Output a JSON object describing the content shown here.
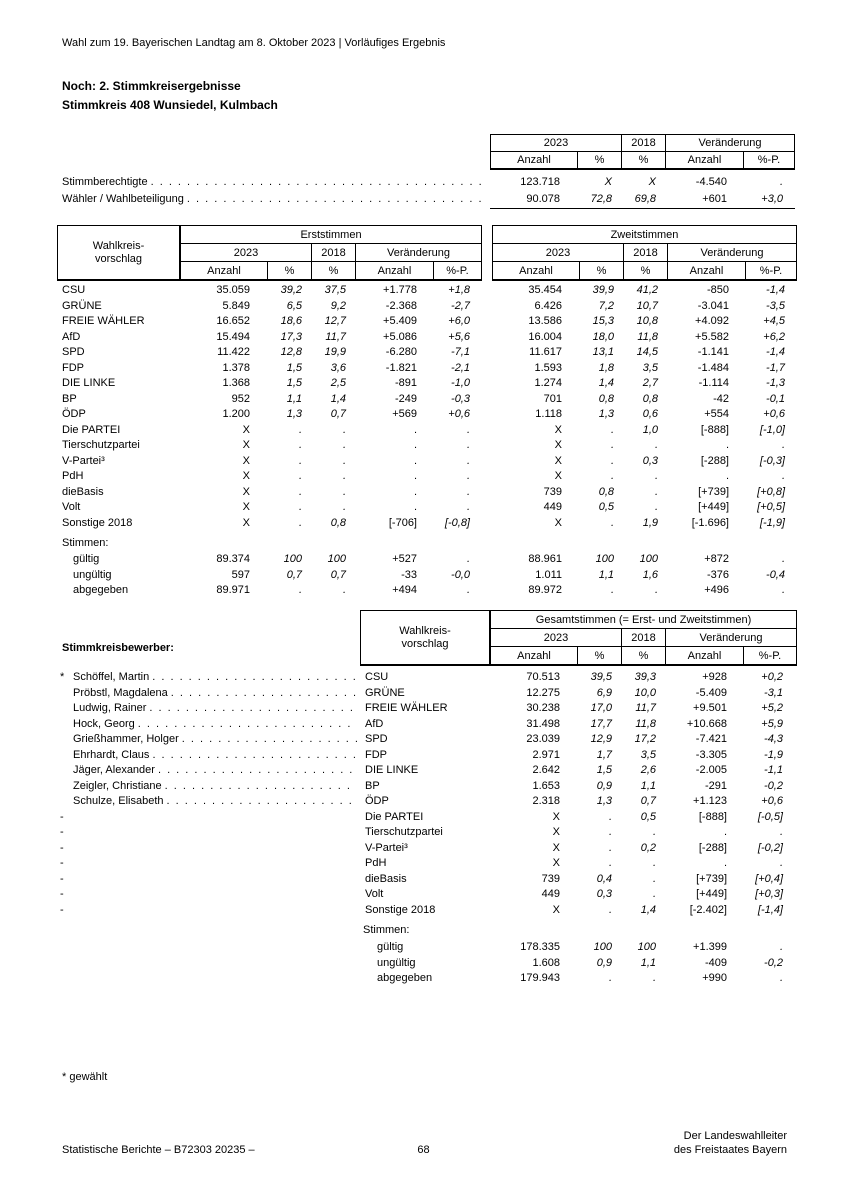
{
  "page": {
    "header": "Wahl zum 19. Bayerischen Landtag am 8. Oktober 2023 | Vorläufiges Ergebnis",
    "title_line1": "Noch: 2. Stimmkreisergebnisse",
    "title_line2": "Stimmkreis 408 Wunsiedel, Kulmbach",
    "footnote": "* gewählt",
    "footer_left": "Statistische Berichte – B72303 20235 –",
    "footer_page": "68",
    "footer_right1": "Der Landeswahlleiter",
    "footer_right2": "des Freistaates Bayern"
  },
  "labels": {
    "y2023": "2023",
    "y2018": "2018",
    "change": "Veränderung",
    "anzahl": "Anzahl",
    "pct": "%",
    "pctp": "%-P.",
    "wahlkreis_line1": "Wahlkreis-",
    "wahlkreis_line2": "vorschlag",
    "erststimmen": "Erststimmen",
    "zweitstimmen": "Zweitstimmen",
    "gesamtstimmen": "Gesamtstimmen (= Erst- und Zweitstimmen)",
    "stimmen": "Stimmen:",
    "stimmkreisbewerber": "Stimmkreisbewerber:"
  },
  "summary": {
    "rows": [
      {
        "label": "Stimmberechtigte",
        "v": [
          "123.718",
          "X",
          "X",
          "-4.540",
          "."
        ]
      },
      {
        "label": "Wähler / Wahlbeteiligung",
        "v": [
          "90.078",
          "72,8",
          "69,8",
          "+601",
          "+3,0"
        ]
      }
    ]
  },
  "votes": {
    "rows": [
      {
        "name": "CSU",
        "e": [
          "35.059",
          "39,2",
          "37,5",
          "+1.778",
          "+1,8"
        ],
        "z": [
          "35.454",
          "39,9",
          "41,2",
          "-850",
          "-1,4"
        ]
      },
      {
        "name": "GRÜNE",
        "e": [
          "5.849",
          "6,5",
          "9,2",
          "-2.368",
          "-2,7"
        ],
        "z": [
          "6.426",
          "7,2",
          "10,7",
          "-3.041",
          "-3,5"
        ]
      },
      {
        "name": "FREIE WÄHLER",
        "e": [
          "16.652",
          "18,6",
          "12,7",
          "+5.409",
          "+6,0"
        ],
        "z": [
          "13.586",
          "15,3",
          "10,8",
          "+4.092",
          "+4,5"
        ]
      },
      {
        "name": "AfD",
        "e": [
          "15.494",
          "17,3",
          "11,7",
          "+5.086",
          "+5,6"
        ],
        "z": [
          "16.004",
          "18,0",
          "11,8",
          "+5.582",
          "+6,2"
        ]
      },
      {
        "name": "SPD",
        "e": [
          "11.422",
          "12,8",
          "19,9",
          "-6.280",
          "-7,1"
        ],
        "z": [
          "11.617",
          "13,1",
          "14,5",
          "-1.141",
          "-1,4"
        ]
      },
      {
        "name": "FDP",
        "e": [
          "1.378",
          "1,5",
          "3,6",
          "-1.821",
          "-2,1"
        ],
        "z": [
          "1.593",
          "1,8",
          "3,5",
          "-1.484",
          "-1,7"
        ]
      },
      {
        "name": "DIE LINKE",
        "e": [
          "1.368",
          "1,5",
          "2,5",
          "-891",
          "-1,0"
        ],
        "z": [
          "1.274",
          "1,4",
          "2,7",
          "-1.114",
          "-1,3"
        ]
      },
      {
        "name": "BP",
        "e": [
          "952",
          "1,1",
          "1,4",
          "-249",
          "-0,3"
        ],
        "z": [
          "701",
          "0,8",
          "0,8",
          "-42",
          "-0,1"
        ]
      },
      {
        "name": "ÖDP",
        "e": [
          "1.200",
          "1,3",
          "0,7",
          "+569",
          "+0,6"
        ],
        "z": [
          "1.118",
          "1,3",
          "0,6",
          "+554",
          "+0,6"
        ]
      },
      {
        "name": "Die PARTEI",
        "e": [
          "X",
          ".",
          ".",
          ".",
          "."
        ],
        "z": [
          "X",
          ".",
          "1,0",
          "[-888]",
          "[-1,0]"
        ]
      },
      {
        "name": "Tierschutzpartei",
        "e": [
          "X",
          ".",
          ".",
          ".",
          "."
        ],
        "z": [
          "X",
          ".",
          ".",
          ".",
          "."
        ]
      },
      {
        "name": "V-Partei³",
        "e": [
          "X",
          ".",
          ".",
          ".",
          "."
        ],
        "z": [
          "X",
          ".",
          "0,3",
          "[-288]",
          "[-0,3]"
        ]
      },
      {
        "name": "PdH",
        "e": [
          "X",
          ".",
          ".",
          ".",
          "."
        ],
        "z": [
          "X",
          ".",
          ".",
          ".",
          "."
        ]
      },
      {
        "name": "dieBasis",
        "e": [
          "X",
          ".",
          ".",
          ".",
          "."
        ],
        "z": [
          "739",
          "0,8",
          ".",
          "[+739]",
          "[+0,8]"
        ]
      },
      {
        "name": "Volt",
        "e": [
          "X",
          ".",
          ".",
          ".",
          "."
        ],
        "z": [
          "449",
          "0,5",
          ".",
          "[+449]",
          "[+0,5]"
        ]
      },
      {
        "name": "Sonstige 2018",
        "e": [
          "X",
          ".",
          "0,8",
          "[-706]",
          "[-0,8]"
        ],
        "z": [
          "X",
          ".",
          "1,9",
          "[-1.696]",
          "[-1,9]"
        ]
      }
    ],
    "stimmen": [
      {
        "name": "gültig",
        "e": [
          "89.374",
          "100",
          "100",
          "+527",
          "."
        ],
        "z": [
          "88.961",
          "100",
          "100",
          "+872",
          "."
        ]
      },
      {
        "name": "ungültig",
        "e": [
          "597",
          "0,7",
          "0,7",
          "-33",
          "-0,0"
        ],
        "z": [
          "1.011",
          "1,1",
          "1,6",
          "-376",
          "-0,4"
        ]
      },
      {
        "name": "abgegeben",
        "e": [
          "89.971",
          ".",
          ".",
          "+494",
          "."
        ],
        "z": [
          "89.972",
          ".",
          ".",
          "+496",
          "."
        ]
      }
    ]
  },
  "total": {
    "rows": [
      {
        "star": "*",
        "candidate": "Schöffel, Martin",
        "party": "CSU",
        "g": [
          "70.513",
          "39,5",
          "39,3",
          "+928",
          "+0,2"
        ]
      },
      {
        "star": "",
        "candidate": "Pröbstl, Magdalena",
        "party": "GRÜNE",
        "g": [
          "12.275",
          "6,9",
          "10,0",
          "-5.409",
          "-3,1"
        ]
      },
      {
        "star": "",
        "candidate": "Ludwig, Rainer",
        "party": "FREIE WÄHLER",
        "g": [
          "30.238",
          "17,0",
          "11,7",
          "+9.501",
          "+5,2"
        ]
      },
      {
        "star": "",
        "candidate": "Hock, Georg",
        "party": "AfD",
        "g": [
          "31.498",
          "17,7",
          "11,8",
          "+10.668",
          "+5,9"
        ]
      },
      {
        "star": "",
        "candidate": "Grießhammer, Holger",
        "party": "SPD",
        "g": [
          "23.039",
          "12,9",
          "17,2",
          "-7.421",
          "-4,3"
        ]
      },
      {
        "star": "",
        "candidate": "Ehrhardt, Claus",
        "party": "FDP",
        "g": [
          "2.971",
          "1,7",
          "3,5",
          "-3.305",
          "-1,9"
        ]
      },
      {
        "star": "",
        "candidate": "Jäger, Alexander",
        "party": "DIE LINKE",
        "g": [
          "2.642",
          "1,5",
          "2,6",
          "-2.005",
          "-1,1"
        ]
      },
      {
        "star": "",
        "candidate": "Zeigler, Christiane",
        "party": "BP",
        "g": [
          "1.653",
          "0,9",
          "1,1",
          "-291",
          "-0,2"
        ]
      },
      {
        "star": "",
        "candidate": "Schulze, Elisabeth",
        "party": "ÖDP",
        "g": [
          "2.318",
          "1,3",
          "0,7",
          "+1.123",
          "+0,6"
        ]
      },
      {
        "star": "-",
        "candidate": "",
        "party": "Die PARTEI",
        "g": [
          "X",
          ".",
          "0,5",
          "[-888]",
          "[-0,5]"
        ]
      },
      {
        "star": "-",
        "candidate": "",
        "party": "Tierschutzpartei",
        "g": [
          "X",
          ".",
          ".",
          ".",
          "."
        ]
      },
      {
        "star": "-",
        "candidate": "",
        "party": "V-Partei³",
        "g": [
          "X",
          ".",
          "0,2",
          "[-288]",
          "[-0,2]"
        ]
      },
      {
        "star": "-",
        "candidate": "",
        "party": "PdH",
        "g": [
          "X",
          ".",
          ".",
          ".",
          "."
        ]
      },
      {
        "star": "-",
        "candidate": "",
        "party": "dieBasis",
        "g": [
          "739",
          "0,4",
          ".",
          "[+739]",
          "[+0,4]"
        ]
      },
      {
        "star": "-",
        "candidate": "",
        "party": "Volt",
        "g": [
          "449",
          "0,3",
          ".",
          "[+449]",
          "[+0,3]"
        ]
      },
      {
        "star": "-",
        "candidate": "",
        "party": "Sonstige 2018",
        "g": [
          "X",
          ".",
          "1,4",
          "[-2.402]",
          "[-1,4]"
        ]
      }
    ],
    "stimmen": [
      {
        "name": "gültig",
        "g": [
          "178.335",
          "100",
          "100",
          "+1.399",
          "."
        ]
      },
      {
        "name": "ungültig",
        "g": [
          "1.608",
          "0,9",
          "1,1",
          "-409",
          "-0,2"
        ]
      },
      {
        "name": "abgegeben",
        "g": [
          "179.943",
          ".",
          ".",
          "+990",
          "."
        ]
      }
    ]
  }
}
